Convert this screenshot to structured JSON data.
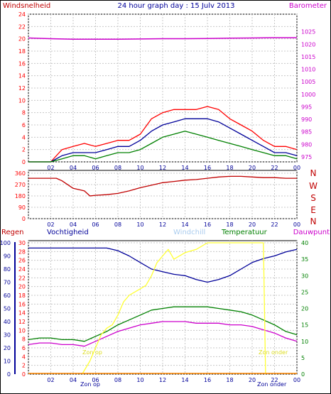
{
  "header": {
    "title": "24 hour graph day : 15 Julv 2013",
    "left_label": "Windsnelheid",
    "right_label": "Barometer"
  },
  "colors": {
    "frame": "#000000",
    "red": "#ff0000",
    "darkred": "#c00000",
    "blue": "#000099",
    "green": "#008000",
    "magenta": "#cc00cc",
    "yellow": "#ffff33",
    "lightblue": "#aaccee",
    "grid": "#c8c8c8"
  },
  "chart_data": [
    {
      "type": "line",
      "name": "wind-barometer",
      "x_ticks": [
        "02",
        "04",
        "06",
        "08",
        "10",
        "12",
        "14",
        "16",
        "18",
        "20",
        "22",
        "00"
      ],
      "left_axis": {
        "label": "Windsnelheid",
        "range": [
          0,
          24
        ],
        "ticks": [
          0,
          2,
          4,
          6,
          8,
          10,
          12,
          14,
          16,
          18,
          20,
          22,
          24
        ]
      },
      "right_axis": {
        "label": "Barometer",
        "range": [
          975,
          1025
        ],
        "ticks": [
          975,
          980,
          985,
          990,
          995,
          1000,
          1005,
          1010,
          1015,
          1020,
          1025
        ]
      },
      "series": [
        {
          "axis": "left",
          "color": "#ff0000",
          "x": [
            0,
            2,
            2.5,
            3,
            4,
            5,
            6,
            7,
            8,
            9,
            10,
            11,
            12,
            13,
            14,
            15,
            16,
            17,
            18,
            19,
            20,
            21,
            22,
            23,
            24
          ],
          "y": [
            0,
            0,
            1,
            2,
            2.5,
            3,
            2.5,
            3,
            3.5,
            3.5,
            4.5,
            7,
            8,
            8.5,
            8.5,
            8.5,
            9,
            8.5,
            7,
            6,
            5,
            3.5,
            2.5,
            2.5,
            2
          ]
        },
        {
          "axis": "left",
          "color": "#000099",
          "x": [
            0,
            2,
            3,
            4,
            5,
            6,
            7,
            8,
            9,
            10,
            11,
            12,
            13,
            14,
            15,
            16,
            17,
            18,
            19,
            20,
            21,
            22,
            23,
            24
          ],
          "y": [
            0,
            0,
            1,
            1.5,
            1.5,
            1.5,
            2,
            2.5,
            2.5,
            3.5,
            5,
            6,
            6.5,
            7,
            7,
            7,
            6.5,
            5.5,
            4.5,
            3.5,
            2.5,
            1.5,
            1.5,
            1
          ]
        },
        {
          "axis": "left",
          "color": "#008000",
          "x": [
            0,
            2,
            3,
            4,
            5,
            6,
            7,
            8,
            9,
            10,
            11,
            12,
            13,
            14,
            15,
            16,
            17,
            18,
            19,
            20,
            21,
            22,
            23,
            24
          ],
          "y": [
            0,
            0,
            0.5,
            1,
            1,
            0.5,
            1,
            1.5,
            1.5,
            2,
            3,
            4,
            4.5,
            5,
            4.5,
            4,
            3.5,
            3,
            2.5,
            2,
            1.5,
            1,
            1,
            0.5
          ]
        },
        {
          "axis": "right",
          "color": "#cc00cc",
          "x": [
            0,
            2,
            4,
            6,
            8,
            10,
            12,
            14,
            16,
            18,
            20,
            22,
            24
          ],
          "y": [
            1022.5,
            1022.2,
            1022.0,
            1022.0,
            1022.0,
            1022.1,
            1022.2,
            1022.2,
            1022.3,
            1022.4,
            1022.5,
            1022.6,
            1022.6
          ]
        }
      ]
    },
    {
      "type": "line",
      "name": "wind-direction",
      "x_ticks": [
        "02",
        "04",
        "06",
        "08",
        "10",
        "12",
        "14",
        "16",
        "18",
        "20",
        "22",
        "00"
      ],
      "left_axis": {
        "range": [
          0,
          360
        ],
        "ticks": [
          0,
          90,
          180,
          270,
          360
        ]
      },
      "right_labels": [
        "N",
        "W",
        "S",
        "E",
        "N"
      ],
      "series": [
        {
          "color": "#c00000",
          "x": [
            0,
            2.5,
            3,
            4,
            5,
            5.5,
            6,
            7,
            8,
            9,
            10,
            11,
            12,
            13,
            14,
            15,
            16,
            17,
            18,
            19,
            20,
            21,
            22,
            23,
            24
          ],
          "y": [
            320,
            320,
            300,
            240,
            220,
            180,
            185,
            190,
            200,
            220,
            245,
            265,
            285,
            295,
            305,
            310,
            320,
            330,
            335,
            335,
            330,
            325,
            325,
            320,
            320
          ]
        }
      ]
    },
    {
      "type": "line",
      "name": "rain-humidity-temperature",
      "x_ticks": [
        "02",
        "04",
        "06",
        "08",
        "10",
        "12",
        "14",
        "16",
        "18",
        "20",
        "22",
        "00"
      ],
      "left_axis_rain": {
        "label": "Regen",
        "range": [
          0,
          30
        ],
        "ticks": [
          0,
          2,
          4,
          6,
          8,
          10,
          12,
          14,
          16,
          18,
          20,
          22,
          24,
          26,
          28,
          30
        ]
      },
      "left_axis_humidity": {
        "label": "Vochtigheid",
        "range": [
          0,
          100
        ],
        "ticks": [
          0,
          10,
          20,
          30,
          40,
          50,
          60,
          70,
          80,
          90,
          100
        ]
      },
      "right_axis": {
        "range": [
          0,
          40
        ],
        "ticks": [
          0,
          5,
          10,
          15,
          20,
          25,
          30,
          35,
          40
        ]
      },
      "legend": [
        "Windchill",
        "Temperatuur",
        "Dauwpunt"
      ],
      "annotations": [
        "Zon op",
        "Zon onder"
      ],
      "series": [
        {
          "axis": "humidity",
          "color": "#000099",
          "x": [
            0,
            2,
            4,
            6,
            7,
            8,
            9,
            10,
            11,
            12,
            13,
            14,
            15,
            16,
            17,
            18,
            19,
            20,
            21,
            22,
            23,
            24
          ],
          "y": [
            96,
            96,
            96,
            96,
            96,
            94,
            90,
            85,
            80,
            78,
            76,
            75,
            72,
            70,
            72,
            75,
            80,
            85,
            88,
            90,
            93,
            95
          ]
        },
        {
          "axis": "right",
          "color": "#008000",
          "x": [
            0,
            1,
            2,
            3,
            4,
            5,
            6,
            7,
            8,
            9,
            10,
            11,
            12,
            13,
            14,
            15,
            16,
            17,
            18,
            19,
            20,
            21,
            22,
            23,
            24
          ],
          "y": [
            10.5,
            11,
            11,
            10.5,
            10.5,
            10,
            11.5,
            13,
            15,
            16.5,
            18,
            19.5,
            20,
            20.5,
            20.5,
            20.5,
            20.5,
            20,
            19.5,
            19,
            18,
            16.5,
            15,
            13,
            12
          ]
        },
        {
          "axis": "right",
          "color": "#cc00cc",
          "x": [
            0,
            1,
            2,
            3,
            4,
            5,
            6,
            7,
            8,
            9,
            10,
            11,
            12,
            13,
            14,
            15,
            16,
            17,
            18,
            19,
            20,
            21,
            22,
            23,
            24
          ],
          "y": [
            9,
            9.5,
            9.5,
            9,
            9,
            8.5,
            10,
            11.5,
            13,
            14,
            15,
            15.5,
            16,
            16,
            16,
            15.5,
            15.5,
            15.5,
            15,
            15,
            14.5,
            13.5,
            12.5,
            11,
            10
          ]
        },
        {
          "axis": "right",
          "color": "#ffff33",
          "x": [
            4.8,
            5.5,
            6,
            6.5,
            7,
            7.5,
            8,
            8.5,
            9,
            9.5,
            10,
            10.5,
            11,
            11.5,
            12,
            12.5,
            13,
            14,
            15,
            16,
            17,
            18,
            19,
            20,
            21,
            21.2
          ],
          "y": [
            0,
            4,
            8,
            12,
            14,
            15,
            18,
            22,
            24,
            25,
            26,
            27,
            30,
            34,
            36,
            38,
            35,
            37,
            38,
            40,
            40,
            40,
            40,
            40,
            40,
            0
          ]
        }
      ]
    }
  ]
}
